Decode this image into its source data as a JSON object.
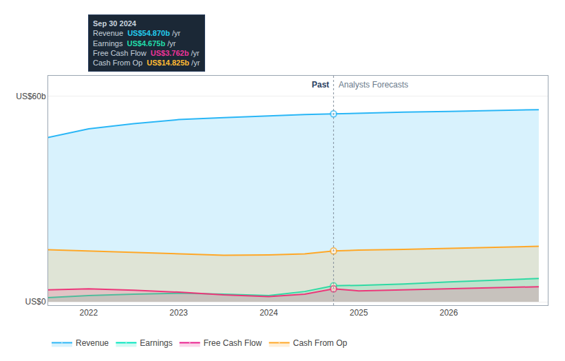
{
  "chart_data": {
    "type": "area",
    "x": [
      2021.55,
      2022.0,
      2022.5,
      2023.0,
      2023.5,
      2024.0,
      2024.4,
      2024.72,
      2025.0,
      2025.5,
      2026.0,
      2026.5,
      2027.0
    ],
    "series": [
      {
        "name": "Revenue",
        "color": "#29b6f6",
        "values": [
          48.0,
          50.5,
          52.0,
          53.2,
          53.8,
          54.3,
          54.7,
          54.87,
          55.1,
          55.4,
          55.6,
          55.85,
          56.1
        ]
      },
      {
        "name": "Earnings",
        "color": "#00e5bf",
        "values": [
          1.2,
          1.8,
          2.2,
          2.5,
          2.2,
          1.8,
          3.0,
          4.675,
          4.8,
          5.2,
          5.8,
          6.3,
          6.8
        ]
      },
      {
        "name": "Free Cash Flow",
        "color": "#e91e8c",
        "values": [
          3.5,
          3.8,
          3.4,
          2.8,
          2.0,
          1.5,
          2.2,
          3.762,
          3.2,
          3.5,
          3.8,
          4.1,
          4.4
        ]
      },
      {
        "name": "Cash From Op",
        "color": "#ffa726",
        "values": [
          15.2,
          14.8,
          14.4,
          14.0,
          13.6,
          13.7,
          14.0,
          14.825,
          15.1,
          15.3,
          15.6,
          15.9,
          16.2
        ]
      }
    ],
    "xlim": [
      2021.55,
      2027.1
    ],
    "xticks": [
      2022,
      2023,
      2024,
      2025,
      2026
    ],
    "ylim": [
      -1,
      66
    ],
    "yticks": [
      {
        "value": 0,
        "label": "US$0"
      },
      {
        "value": 60,
        "label": "US$60b"
      }
    ],
    "grid": true,
    "legend": "bottom",
    "divider": {
      "x": 2024.72,
      "past_label": "Past",
      "forecast_label": "Analysts Forecasts"
    },
    "tooltip": {
      "title": "Sep 30 2024",
      "rows": [
        {
          "label": "Revenue",
          "value_label": "US$54.870b",
          "unit": "/yr",
          "color": "#22ccee"
        },
        {
          "label": "Earnings",
          "value_label": "US$4.675b",
          "unit": "/yr",
          "color": "#22ddaa"
        },
        {
          "label": "Free Cash Flow",
          "value_label": "US$3.762b",
          "unit": "/yr",
          "color": "#ee3399"
        },
        {
          "label": "Cash From Op",
          "value_label": "US$14.825b",
          "unit": "/yr",
          "color": "#ffbb33"
        }
      ]
    }
  }
}
